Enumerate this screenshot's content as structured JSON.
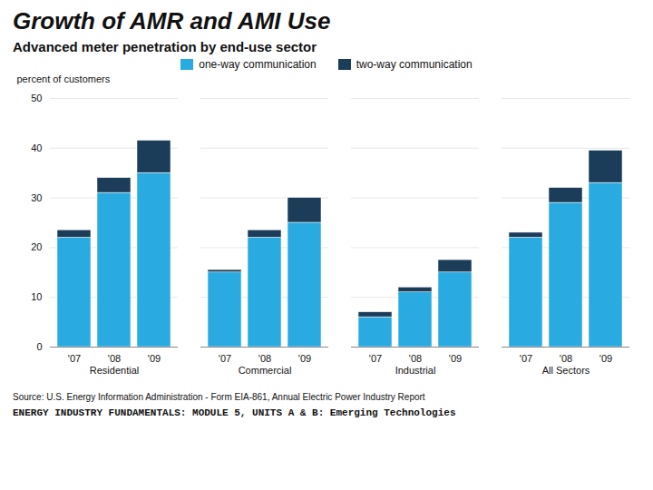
{
  "chart_data": {
    "type": "bar",
    "stacked": true,
    "title": "Growth of AMR and AMI Use",
    "subtitle": "Advanced meter penetration by end-use sector",
    "ylabel": "percent of customers",
    "source": "Source: U.S. Energy Information Administration - Form EIA-861, Annual Electric Power Industry Report",
    "footer": "ENERGY INDUSTRY FUNDAMENTALS:  MODULE 5, UNITS A & B: Emerging Technologies",
    "groups": [
      "Residential",
      "Commercial",
      "Industrial",
      "All Sectors"
    ],
    "categories": [
      "'07",
      "'08",
      "'09"
    ],
    "series": [
      {
        "name": "one-way communication",
        "color": "#29ABE2",
        "values": [
          [
            22,
            31,
            35
          ],
          [
            15,
            22,
            25
          ],
          [
            6,
            11,
            15
          ],
          [
            22,
            29,
            33
          ]
        ]
      },
      {
        "name": "two-way communication",
        "color": "#1C3D5A",
        "values": [
          [
            1.5,
            3,
            6.5
          ],
          [
            0.5,
            1.5,
            5
          ],
          [
            1,
            1,
            2.5
          ],
          [
            1,
            3,
            6.5
          ]
        ]
      }
    ],
    "ylim": [
      0,
      50
    ],
    "yticks": [
      0,
      10,
      20,
      30,
      40,
      50
    ],
    "grid": true,
    "legend": "top"
  }
}
